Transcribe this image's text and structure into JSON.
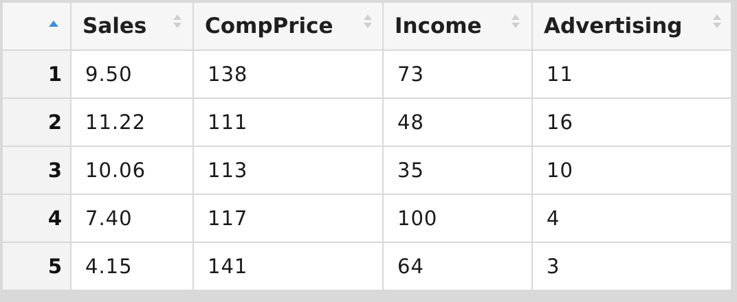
{
  "table": {
    "columns": [
      "Sales",
      "CompPrice",
      "Income",
      "Advertising"
    ],
    "rows": [
      {
        "index": "1",
        "cells": [
          "9.50",
          "138",
          "73",
          "11"
        ]
      },
      {
        "index": "2",
        "cells": [
          "11.22",
          "111",
          "48",
          "16"
        ]
      },
      {
        "index": "3",
        "cells": [
          "10.06",
          "113",
          "35",
          "10"
        ]
      },
      {
        "index": "4",
        "cells": [
          "7.40",
          "117",
          "100",
          "4"
        ]
      },
      {
        "index": "5",
        "cells": [
          "4.15",
          "141",
          "64",
          "3"
        ]
      }
    ],
    "sort_column": "index",
    "sort_direction": "ascending"
  },
  "icons": {
    "sort_active": "sort-ascending-icon",
    "sort_inactive": "sort-both-icon"
  },
  "colors": {
    "sort_active": "#3f8fe0",
    "border": "#d9d9d9",
    "header_bg": "#f6f6f6",
    "index_bg": "#f3f3f3"
  }
}
